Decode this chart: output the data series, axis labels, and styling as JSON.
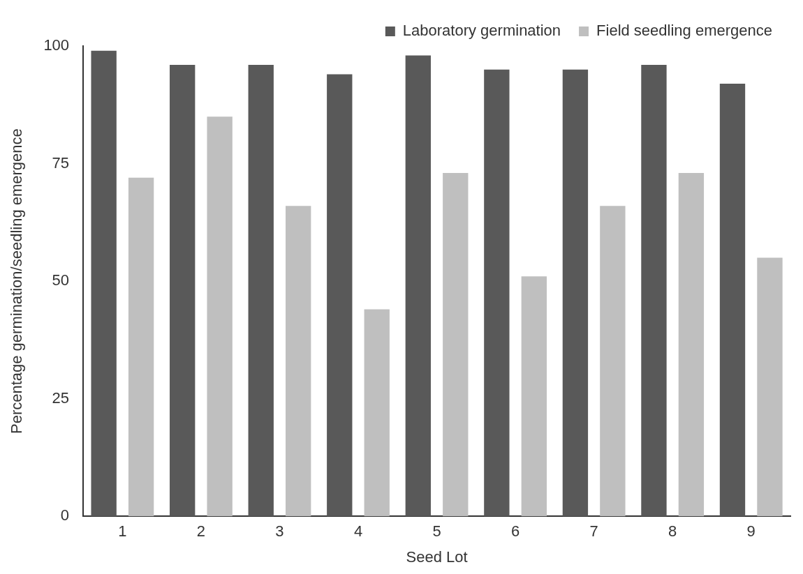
{
  "chart_data": {
    "type": "bar",
    "xlabel": "Seed Lot",
    "ylabel": "Percentage germination/seedling emergence",
    "categories": [
      "1",
      "2",
      "3",
      "4",
      "5",
      "6",
      "7",
      "8",
      "9"
    ],
    "series": [
      {
        "name": "Laboratory germination",
        "color": "#595959",
        "values": [
          99,
          96,
          96,
          94,
          98,
          95,
          95,
          96,
          92
        ]
      },
      {
        "name": "Field seedling emergence",
        "color": "#bfbfbf",
        "values": [
          72,
          85,
          66,
          44,
          73,
          51,
          66,
          73,
          55
        ]
      }
    ],
    "ylim": [
      0,
      100
    ],
    "yticks": [
      0,
      25,
      50,
      75,
      100
    ],
    "grid": false,
    "legend": "top right"
  }
}
